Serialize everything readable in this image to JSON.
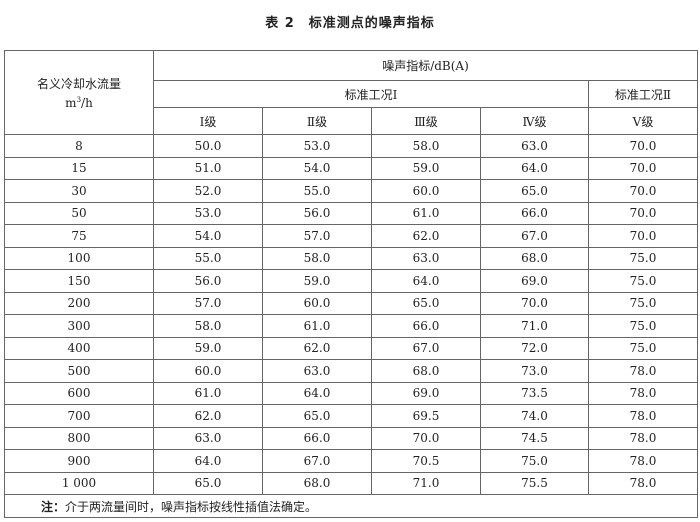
{
  "title": "表 2　标准测点的噪声指标",
  "header": {
    "flow_label": "名义冷却水流量",
    "flow_unit_base": "m",
    "flow_unit_sup": "3",
    "flow_unit_tail": "/h",
    "noise_label": "噪声指标/dB(A)",
    "condition_1": "标准工况Ⅰ",
    "condition_2": "标准工况Ⅱ",
    "grades": [
      "Ⅰ级",
      "Ⅱ级",
      "Ⅲ级",
      "Ⅳ级",
      "Ⅴ级"
    ]
  },
  "rows": [
    [
      "8",
      "50.0",
      "53.0",
      "58.0",
      "63.0",
      "70.0"
    ],
    [
      "15",
      "51.0",
      "54.0",
      "59.0",
      "64.0",
      "70.0"
    ],
    [
      "30",
      "52.0",
      "55.0",
      "60.0",
      "65.0",
      "70.0"
    ],
    [
      "50",
      "53.0",
      "56.0",
      "61.0",
      "66.0",
      "70.0"
    ],
    [
      "75",
      "54.0",
      "57.0",
      "62.0",
      "67.0",
      "70.0"
    ],
    [
      "100",
      "55.0",
      "58.0",
      "63.0",
      "68.0",
      "75.0"
    ],
    [
      "150",
      "56.0",
      "59.0",
      "64.0",
      "69.0",
      "75.0"
    ],
    [
      "200",
      "57.0",
      "60.0",
      "65.0",
      "70.0",
      "75.0"
    ],
    [
      "300",
      "58.0",
      "61.0",
      "66.0",
      "71.0",
      "75.0"
    ],
    [
      "400",
      "59.0",
      "62.0",
      "67.0",
      "72.0",
      "75.0"
    ],
    [
      "500",
      "60.0",
      "63.0",
      "68.0",
      "73.0",
      "78.0"
    ],
    [
      "600",
      "61.0",
      "64.0",
      "69.0",
      "73.5",
      "78.0"
    ],
    [
      "700",
      "62.0",
      "65.0",
      "69.5",
      "74.0",
      "78.0"
    ],
    [
      "800",
      "63.0",
      "66.0",
      "70.0",
      "74.5",
      "78.0"
    ],
    [
      "900",
      "64.0",
      "67.0",
      "70.5",
      "75.0",
      "78.0"
    ],
    [
      "1 000",
      "65.0",
      "68.0",
      "71.0",
      "75.5",
      "78.0"
    ]
  ],
  "note": {
    "label": "注：",
    "text": "介于两流量间时，噪声指标按线性插值法确定。"
  }
}
